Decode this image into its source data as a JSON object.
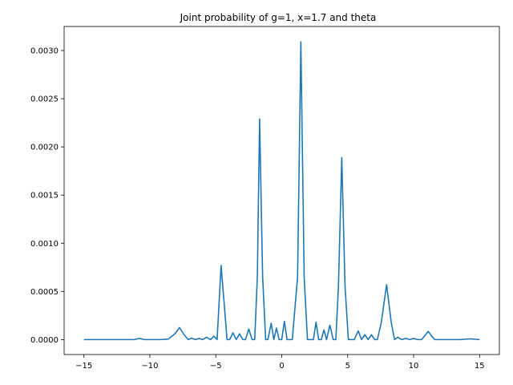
{
  "chart_data": {
    "type": "line",
    "title": "Joint probability of g=1, x=1.7 and theta",
    "xlabel": "",
    "ylabel": "",
    "xlim": [
      -16.5,
      16.5
    ],
    "ylim": [
      -0.000155,
      0.00325
    ],
    "x_ticks": [
      -15,
      -10,
      -5,
      0,
      5,
      10,
      15
    ],
    "x_tick_labels": [
      "−15",
      "−10",
      "−5",
      "0",
      "5",
      "10",
      "15"
    ],
    "y_ticks": [
      0.0,
      0.0005,
      0.001,
      0.0015,
      0.002,
      0.0025,
      0.003
    ],
    "y_tick_labels": [
      "0.0000",
      "0.0005",
      "0.0010",
      "0.0015",
      "0.0020",
      "0.0025",
      "0.0030"
    ],
    "grid": false,
    "line_color": "#1f77b4",
    "series": [
      {
        "x": [
          -15.0,
          -12.0,
          -11.2,
          -10.8,
          -10.4,
          -10.0,
          -9.2,
          -8.6,
          -8.1,
          -7.75,
          -7.4,
          -7.1,
          -6.85,
          -6.55,
          -6.25,
          -6.0,
          -5.7,
          -5.4,
          -5.15,
          -4.9,
          -4.6,
          -4.35,
          -4.15,
          -3.95,
          -3.7,
          -3.45,
          -3.2,
          -2.95,
          -2.75,
          -2.5,
          -2.25,
          -2.05,
          -1.85,
          -1.68,
          -1.45,
          -1.22,
          -1.05,
          -0.8,
          -0.6,
          -0.4,
          -0.2,
          0.0,
          0.2,
          0.4,
          0.6,
          0.8,
          1.2,
          1.45,
          1.7,
          1.95,
          2.2,
          2.4,
          2.6,
          2.8,
          3.0,
          3.2,
          3.4,
          3.65,
          3.9,
          4.1,
          4.3,
          4.55,
          4.8,
          5.05,
          5.3,
          5.5,
          5.8,
          6.05,
          6.3,
          6.55,
          6.8,
          7.05,
          7.25,
          7.55,
          7.95,
          8.3,
          8.55,
          8.8,
          9.1,
          9.4,
          9.7,
          10.0,
          10.3,
          10.6,
          10.85,
          11.1,
          11.35,
          11.6,
          12.5,
          13.5,
          14.3,
          15.0
        ],
        "y": [
          0.0,
          0.0,
          0.0,
          1.2e-05,
          0.0,
          0.0,
          0.0,
          5e-06,
          6e-05,
          0.000125,
          5e-05,
          0.0,
          1.5e-05,
          0.0,
          1.2e-05,
          0.0,
          2.5e-05,
          0.0,
          3.5e-05,
          0.0,
          0.00077,
          0.00035,
          0.0,
          0.0,
          7e-05,
          0.0,
          6e-05,
          0.0,
          0.0,
          0.00011,
          0.0,
          0.0,
          0.00065,
          0.00229,
          0.00065,
          0.0,
          0.0,
          0.00017,
          0.0,
          0.00012,
          0.0,
          0.0,
          0.00019,
          0.0,
          0.0,
          0.0,
          0.00065,
          0.00309,
          0.00065,
          0.0,
          0.0,
          0.0,
          0.00018,
          0.0,
          0.0,
          0.0001,
          0.0,
          0.00015,
          0.0,
          0.0,
          0.00055,
          0.00189,
          0.00055,
          0.0,
          0.0,
          0.0,
          9e-05,
          0.0,
          5e-05,
          0.0,
          5e-05,
          0.0,
          0.0,
          0.00018,
          0.00057,
          0.00018,
          0.0,
          2.5e-05,
          0.0,
          1.2e-05,
          0.0,
          1.2e-05,
          0.0,
          0.0,
          4e-05,
          8.5e-05,
          4e-05,
          0.0,
          0.0,
          0.0,
          8e-06,
          0.0
        ]
      }
    ]
  }
}
